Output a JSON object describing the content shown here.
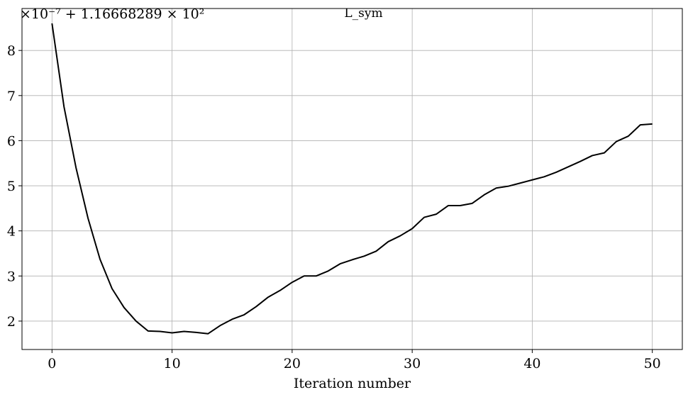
{
  "chart_data": {
    "type": "line",
    "title": "L_sym",
    "xlabel": "Iteration number",
    "ylabel": "",
    "y_offset_label": "×10⁻⁷ + 1.16668289 × 10²",
    "xlim": [
      -2.5,
      52.5
    ],
    "ylim": [
      1.37,
      8.93
    ],
    "x_ticks": [
      0,
      10,
      20,
      30,
      40,
      50
    ],
    "y_ticks": [
      2,
      3,
      4,
      5,
      6,
      7,
      8
    ],
    "grid": true,
    "legend": "none",
    "line_color": "#000000",
    "series": [
      {
        "x": [
          0,
          1,
          2,
          3,
          4,
          5,
          6,
          7,
          8,
          9,
          10,
          11,
          12,
          13,
          14,
          15,
          16,
          17,
          18,
          19,
          20,
          21,
          22,
          23,
          24,
          25,
          26,
          27,
          28,
          29,
          30,
          31,
          32,
          33,
          34,
          35,
          36,
          37,
          38,
          39,
          40,
          41,
          42,
          43,
          44,
          45,
          46,
          47,
          48,
          49,
          50
        ],
        "values": [
          8.6,
          6.75,
          5.4,
          4.28,
          3.37,
          2.72,
          2.3,
          2.0,
          1.78,
          1.77,
          1.74,
          1.77,
          1.75,
          1.72,
          1.9,
          2.04,
          2.14,
          2.32,
          2.53,
          2.68,
          2.86,
          3.0,
          3.0,
          3.11,
          3.27,
          3.36,
          3.44,
          3.55,
          3.76,
          3.89,
          4.05,
          4.3,
          4.37,
          4.56,
          4.56,
          4.61,
          4.8,
          4.95,
          4.99,
          5.06,
          5.13,
          5.2,
          5.3,
          5.42,
          5.54,
          5.67,
          5.73,
          5.98,
          6.1,
          6.35,
          6.37
        ]
      }
    ]
  }
}
